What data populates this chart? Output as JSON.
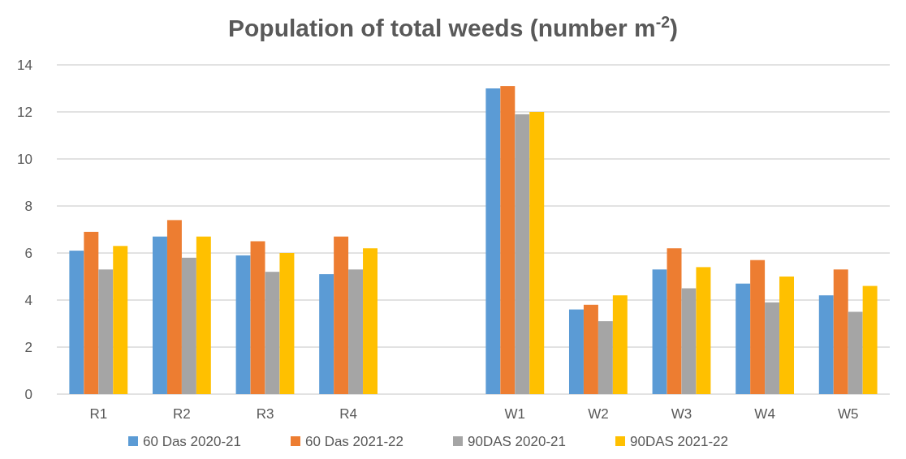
{
  "chart_data": {
    "type": "bar",
    "title": "Population of total weeds (number m$^{-2}$)",
    "categories": [
      "R1",
      "R2",
      "R3",
      "R4",
      null,
      "W1",
      "W2",
      "W3",
      "W4",
      "W5"
    ],
    "series": [
      {
        "name": "60 Das 2020-21",
        "color": "#5b9bd5",
        "values": [
          6.1,
          6.7,
          5.9,
          5.1,
          null,
          13.0,
          3.6,
          5.3,
          4.7,
          4.2
        ]
      },
      {
        "name": "60 Das 2021-22",
        "color": "#ed7d31",
        "values": [
          6.9,
          7.4,
          6.5,
          6.7,
          null,
          13.1,
          3.8,
          6.2,
          5.7,
          5.3
        ]
      },
      {
        "name": "90DAS 2020-21",
        "color": "#a5a5a5",
        "values": [
          5.3,
          5.8,
          5.2,
          5.3,
          null,
          11.9,
          3.1,
          4.5,
          3.9,
          3.5
        ]
      },
      {
        "name": "90DAS 2021-22",
        "color": "#ffc000",
        "values": [
          6.3,
          6.7,
          6.0,
          6.2,
          null,
          12.0,
          4.2,
          5.4,
          5.0,
          4.6
        ]
      }
    ],
    "ylim": [
      0,
      14
    ],
    "yticks": [
      0,
      2,
      4,
      6,
      8,
      10,
      12,
      14
    ],
    "grid": "y",
    "legend": "bottom"
  }
}
